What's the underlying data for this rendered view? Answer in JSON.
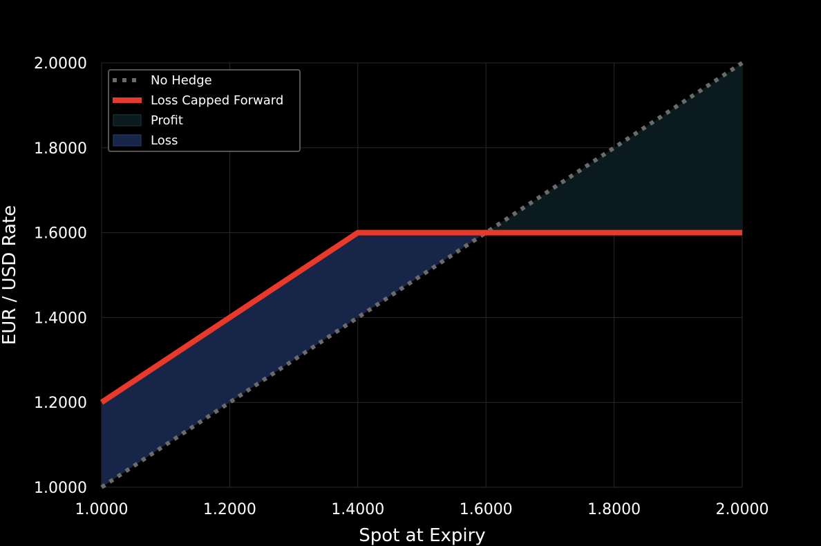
{
  "chart_data": {
    "type": "line",
    "title": "",
    "xlabel": "Spot at Expiry",
    "ylabel": "EUR / USD Rate",
    "xlim": [
      1.0,
      2.0
    ],
    "ylim": [
      1.0,
      2.0
    ],
    "grid": true,
    "legend_position": "top-left",
    "x_ticks": [
      "1.0000",
      "1.2000",
      "1.4000",
      "1.6000",
      "1.8000",
      "2.0000"
    ],
    "y_ticks": [
      "1.0000",
      "1.2000",
      "1.4000",
      "1.6000",
      "1.8000",
      "2.0000"
    ],
    "series": [
      {
        "name": "No Hedge",
        "style": "dotted",
        "color": "#6b6b6b",
        "x": [
          1.0,
          2.0
        ],
        "y": [
          1.0,
          2.0
        ]
      },
      {
        "name": "Loss Capped Forward",
        "style": "solid",
        "color": "#e8392a",
        "x": [
          1.0,
          1.4,
          2.0
        ],
        "y": [
          1.2,
          1.6,
          1.6
        ]
      }
    ],
    "areas": [
      {
        "name": "Profit",
        "color": "#0b1a1f",
        "x": [
          1.6,
          2.0
        ],
        "y_upper": [
          1.6,
          2.0
        ],
        "y_lower": [
          1.6,
          1.6
        ]
      },
      {
        "name": "Loss",
        "color": "#172648",
        "x": [
          1.0,
          1.4,
          1.6
        ],
        "y_upper": [
          1.2,
          1.6,
          1.6
        ],
        "y_lower": [
          1.0,
          1.4,
          1.6
        ]
      }
    ]
  }
}
